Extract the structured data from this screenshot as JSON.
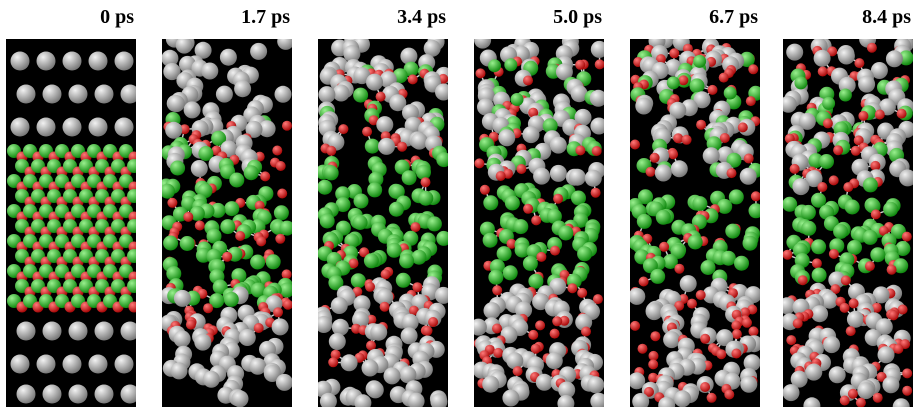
{
  "frames": [
    {
      "label": "0 ps"
    },
    {
      "label": "1.7 ps"
    },
    {
      "label": "3.4 ps"
    },
    {
      "label": "5.0 ps"
    },
    {
      "label": "6.7 ps"
    },
    {
      "label": "8.4 ps"
    }
  ],
  "colors": {
    "background": "#000000",
    "atom_gray": "#b0b0b0",
    "atom_green": "#22b41e",
    "atom_red": "#d81818"
  }
}
